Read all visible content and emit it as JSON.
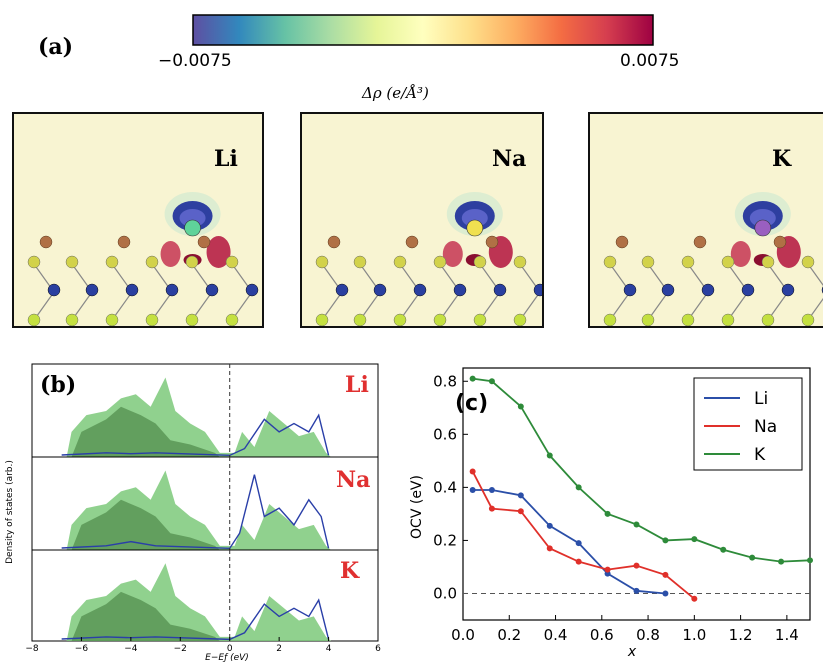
{
  "panel_a": {
    "label": "(a)",
    "colorbar": {
      "min_label": "−0.0075",
      "max_label": "0.0075",
      "label": "Δρ (e/Å³)",
      "colors": [
        "#5e4fa2",
        "#3288bd",
        "#66c2a5",
        "#abdda4",
        "#e6f598",
        "#ffffbf",
        "#fee08b",
        "#fdae61",
        "#f46d43",
        "#d53e4f",
        "#9e0142"
      ]
    },
    "snapshots": [
      {
        "element": "Li",
        "color": "#3cb043",
        "ion_color": "#5fd39a"
      },
      {
        "element": "Na",
        "color": "#f5a623",
        "ion_color": "#f0e050"
      },
      {
        "element": "K",
        "color": "#5b3a8c",
        "ion_color": "#9a5fc0"
      }
    ]
  },
  "panel_b": {
    "label": "(b)",
    "ylabel": "Density of states (arb.)",
    "xlabel": "E−Eƒ (eV)",
    "x_ticks": [
      "−8",
      "−6",
      "−4",
      "−2",
      "0",
      "2",
      "4",
      "6"
    ],
    "subplots": [
      {
        "element": "Li"
      },
      {
        "element": "Na"
      },
      {
        "element": "K"
      }
    ]
  },
  "chart_data": {
    "type": "line",
    "title": "",
    "panel_label": "(c)",
    "xlabel": "x",
    "ylabel": "OCV (eV)",
    "xlim": [
      0.0,
      1.5
    ],
    "ylim": [
      -0.1,
      0.85
    ],
    "x_ticks": [
      0.0,
      0.2,
      0.4,
      0.6,
      0.8,
      1.0,
      1.2,
      1.4
    ],
    "y_ticks": [
      0.0,
      0.2,
      0.4,
      0.6,
      0.8
    ],
    "legend_position": "top-right",
    "reference_line": 0.0,
    "series": [
      {
        "name": "Li",
        "color": "#2b4fa8",
        "x": [
          0.0417,
          0.125,
          0.25,
          0.375,
          0.5,
          0.625,
          0.75,
          0.875
        ],
        "y": [
          0.39,
          0.39,
          0.37,
          0.255,
          0.19,
          0.075,
          0.01,
          0.0
        ]
      },
      {
        "name": "Na",
        "color": "#e0302a",
        "x": [
          0.0417,
          0.125,
          0.25,
          0.375,
          0.5,
          0.625,
          0.75,
          0.875,
          1.0
        ],
        "y": [
          0.46,
          0.32,
          0.31,
          0.17,
          0.12,
          0.09,
          0.105,
          0.07,
          -0.02
        ]
      },
      {
        "name": "K",
        "color": "#2e8b3a",
        "x": [
          0.0417,
          0.125,
          0.25,
          0.375,
          0.5,
          0.625,
          0.75,
          0.875,
          1.0,
          1.125,
          1.25,
          1.375,
          1.5
        ],
        "y": [
          0.81,
          0.8,
          0.705,
          0.52,
          0.4,
          0.3,
          0.26,
          0.2,
          0.205,
          0.165,
          0.135,
          0.12,
          0.125
        ]
      }
    ]
  }
}
